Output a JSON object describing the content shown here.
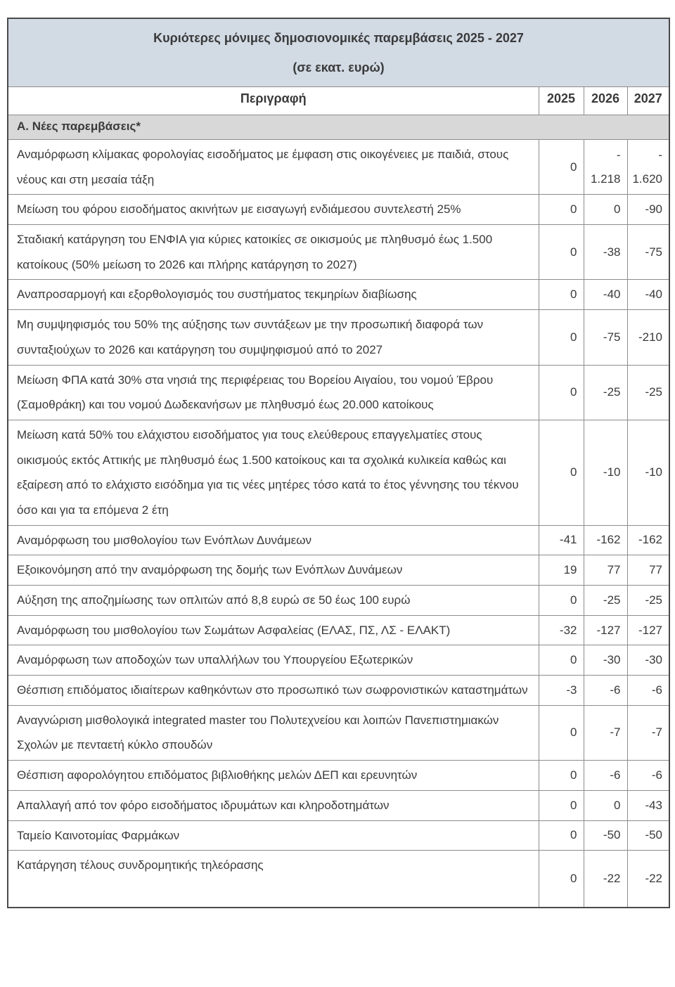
{
  "table": {
    "title": "Κυριότερες μόνιμες δημοσιονομικές παρεμβάσεις 2025 - 2027",
    "subtitle": "(σε εκατ. ευρώ)",
    "columns": {
      "description": "Περιγραφή",
      "years": [
        "2025",
        "2026",
        "2027"
      ]
    },
    "section_a_label": "Α. Νέες παρεμβάσεις*",
    "rows": [
      {
        "desc": "Αναμόρφωση κλίμακας φορολογίας εισοδήματος με έμφαση στις οικογένειες με παιδιά, στους νέους και στη μεσαία τάξη",
        "values": [
          "0",
          "-\n1.218",
          "-\n1.620"
        ]
      },
      {
        "desc": "Μείωση του φόρου εισοδήματος ακινήτων με εισαγωγή ενδιάμεσου συντελεστή 25%",
        "values": [
          "0",
          "0",
          "-90"
        ]
      },
      {
        "desc": "Σταδιακή κατάργηση του ΕΝΦΙΑ για κύριες κατοικίες σε οικισμούς με πληθυσμό έως 1.500 κατοίκους (50% μείωση το 2026 και πλήρης κατάργηση το 2027)",
        "values": [
          "0",
          "-38",
          "-75"
        ]
      },
      {
        "desc": "Αναπροσαρμογή και εξορθολογισμός του συστήματος τεκμηρίων διαβίωσης",
        "values": [
          "0",
          "-40",
          "-40"
        ]
      },
      {
        "desc": "Μη συμψηφισμός του 50% της αύξησης των συντάξεων με την προσωπική διαφορά των συνταξιούχων το 2026 και κατάργηση του συμψηφισμού από το 2027",
        "values": [
          "0",
          "-75",
          "-210"
        ]
      },
      {
        "desc": "Μείωση ΦΠΑ κατά 30% στα νησιά της περιφέρειας του Βορείου Αιγαίου, του νομού Έβρου (Σαμοθράκη) και του νομού Δωδεκανήσων με πληθυσμό έως 20.000 κατοίκους",
        "values": [
          "0",
          "-25",
          "-25"
        ]
      },
      {
        "desc": "Μείωση κατά 50% του ελάχιστου εισοδήματος για τους ελεύθερους επαγγελματίες στους οικισμούς εκτός Αττικής με πληθυσμό έως 1.500 κατοίκους και τα σχολικά κυλικεία καθώς και εξαίρεση από το ελάχιστο εισόδημα για τις νέες μητέρες τόσο κατά το έτος γέννησης του τέκνου όσο και για τα επόμενα 2 έτη",
        "values": [
          "0",
          "-10",
          "-10"
        ]
      },
      {
        "desc": "Αναμόρφωση του μισθολογίου των Ενόπλων Δυνάμεων",
        "values": [
          "-41",
          "-162",
          "-162"
        ]
      },
      {
        "desc": "Εξοικονόμηση από την αναμόρφωση της δομής των Ενόπλων Δυνάμεων",
        "values": [
          "19",
          "77",
          "77"
        ]
      },
      {
        "desc": "Αύξηση της αποζημίωσης των οπλιτών από 8,8 ευρώ σε 50 έως 100 ευρώ",
        "values": [
          "0",
          "-25",
          "-25"
        ]
      },
      {
        "desc": "Αναμόρφωση του μισθολογίου των Σωμάτων Ασφαλείας (ΕΛΑΣ, ΠΣ, ΛΣ - ΕΛΑΚΤ)",
        "values": [
          "-32",
          "-127",
          "-127"
        ]
      },
      {
        "desc": "Αναμόρφωση των αποδοχών των υπαλλήλων του Υπουργείου Εξωτερικών",
        "values": [
          "0",
          "-30",
          "-30"
        ]
      },
      {
        "desc": "Θέσπιση επιδόματος ιδιαίτερων καθηκόντων στο προσωπικό των σωφρονιστικών καταστημάτων",
        "values": [
          "-3",
          "-6",
          "-6"
        ]
      },
      {
        "desc": "Αναγνώριση μισθολογικά integrated master του Πολυτεχνείου και λοιπών Πανεπιστημιακών Σχολών με πενταετή κύκλο σπουδών",
        "values": [
          "0",
          "-7",
          "-7"
        ]
      },
      {
        "desc": "Θέσπιση αφορολόγητου επιδόματος βιβλιοθήκης μελών ΔΕΠ και ερευνητών",
        "values": [
          "0",
          "-6",
          "-6"
        ]
      },
      {
        "desc": "Απαλλαγή από τον φόρο εισοδήματος ιδρυμάτων και κληροδοτημάτων",
        "values": [
          "0",
          "0",
          "-43"
        ]
      },
      {
        "desc": "Ταμείο Καινοτομίας Φαρμάκων",
        "values": [
          "0",
          "-50",
          "-50"
        ]
      },
      {
        "desc": "Κατάργηση τέλους συνδρομητικής τηλεόρασης",
        "values": [
          "0",
          "-22",
          "-22"
        ]
      }
    ],
    "colors": {
      "title_background": "#d2dae4",
      "section_background": "#d8d8d8",
      "text": "#3a3a3a",
      "grid_border": "#8c8c8c",
      "outer_border": "#4a4a4a"
    }
  }
}
